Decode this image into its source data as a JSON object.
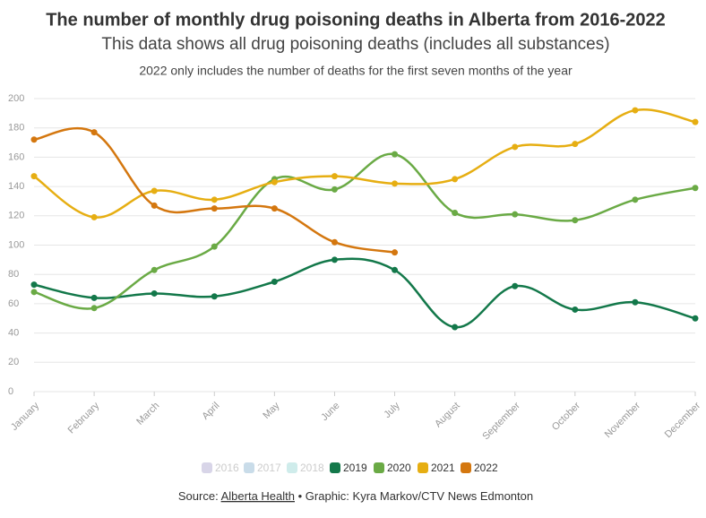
{
  "chart_data": {
    "type": "line",
    "title": "The number of monthly drug poisoning deaths in Alberta from 2016-2022",
    "subtitle": "This data shows all drug poisoning deaths (includes all substances)",
    "note": "2022 only includes the number of deaths for the first seven months of the year",
    "categories": [
      "January",
      "February",
      "March",
      "April",
      "May",
      "June",
      "July",
      "August",
      "September",
      "October",
      "November",
      "December"
    ],
    "series": [
      {
        "name": "2016",
        "color": "#d8d5e8",
        "visible": false,
        "values": [
          null,
          null,
          null,
          null,
          null,
          null,
          null,
          null,
          null,
          null,
          null,
          null
        ]
      },
      {
        "name": "2017",
        "color": "#c9dce9",
        "visible": false,
        "values": [
          null,
          null,
          null,
          null,
          null,
          null,
          null,
          null,
          null,
          null,
          null,
          null
        ]
      },
      {
        "name": "2018",
        "color": "#cfeceb",
        "visible": false,
        "values": [
          null,
          null,
          null,
          null,
          null,
          null,
          null,
          null,
          null,
          null,
          null,
          null
        ]
      },
      {
        "name": "2019",
        "color": "#13784a",
        "visible": true,
        "values": [
          73,
          64,
          67,
          65,
          75,
          90,
          83,
          44,
          72,
          56,
          61,
          50
        ]
      },
      {
        "name": "2020",
        "color": "#6aaa45",
        "visible": true,
        "values": [
          68,
          57,
          83,
          99,
          145,
          138,
          162,
          122,
          121,
          117,
          131,
          139
        ]
      },
      {
        "name": "2021",
        "color": "#e6ae12",
        "visible": true,
        "values": [
          147,
          119,
          137,
          131,
          143,
          147,
          142,
          145,
          167,
          169,
          192,
          184
        ]
      },
      {
        "name": "2022",
        "color": "#d4770f",
        "visible": true,
        "values": [
          172,
          177,
          127,
          125,
          125,
          102,
          95,
          null,
          null,
          null,
          null,
          null
        ]
      }
    ],
    "ylim": [
      0,
      200
    ],
    "yticks": [
      0,
      20,
      40,
      60,
      80,
      100,
      120,
      140,
      160,
      180,
      200
    ],
    "grid": true,
    "source": {
      "label": "Source:",
      "name": "Alberta Health",
      "credit": "• Graphic: Kyra Markov/CTV News Edmonton"
    }
  }
}
